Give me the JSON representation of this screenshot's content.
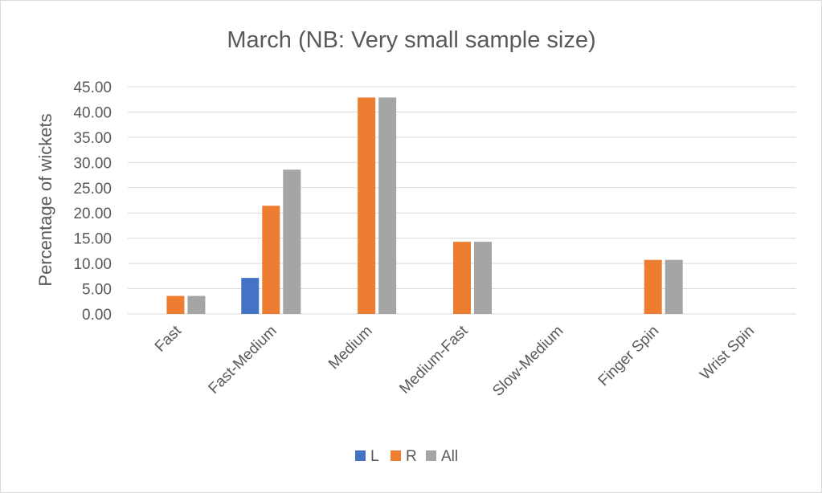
{
  "chart_data": {
    "type": "bar",
    "title": "March (NB: Very small sample size)",
    "ylabel": "Percentage of wickets",
    "xlabel": "",
    "ylim": [
      0,
      45
    ],
    "ytick_step": 5,
    "ytick_labels": [
      "0.00",
      "5.00",
      "10.00",
      "15.00",
      "20.00",
      "25.00",
      "30.00",
      "35.00",
      "40.00",
      "45.00"
    ],
    "grid": true,
    "legend_position": "bottom",
    "categories": [
      "Fast",
      "Fast-Medium",
      "Medium",
      "Medium-Fast",
      "Slow-Medium",
      "Finger Spin",
      "Wrist Spin"
    ],
    "series": [
      {
        "name": "L",
        "color": "#4472c4",
        "values": [
          0,
          7.14,
          0,
          0,
          0,
          0,
          0
        ]
      },
      {
        "name": "R",
        "color": "#ed7d31",
        "values": [
          3.57,
          21.43,
          42.86,
          14.29,
          0,
          10.71,
          0
        ]
      },
      {
        "name": "All",
        "color": "#a5a5a5",
        "values": [
          3.57,
          28.57,
          42.86,
          14.29,
          0,
          10.71,
          0
        ]
      }
    ]
  }
}
